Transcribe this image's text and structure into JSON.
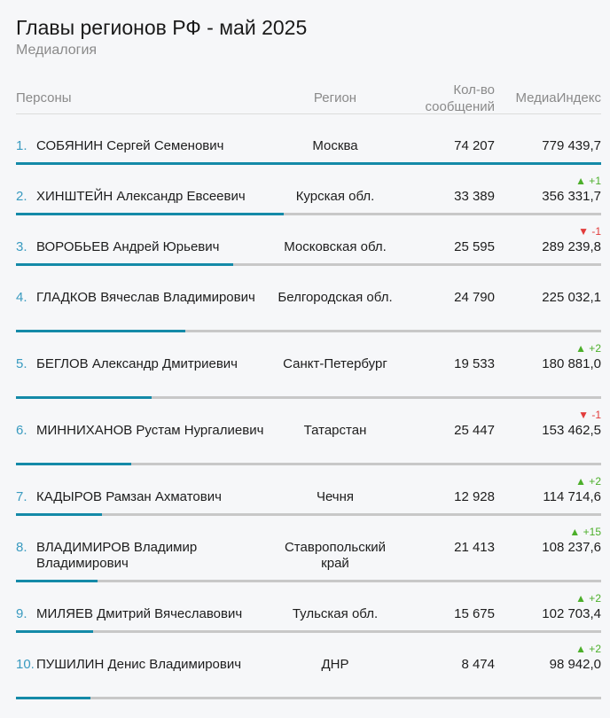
{
  "title": "Главы регионов РФ - май 2025",
  "subtitle": "Медиалогия",
  "headers": {
    "persons": "Персоны",
    "region": "Регион",
    "count_line1": "Кол-во",
    "count_line2": "сообщений",
    "index": "МедиаИндекс"
  },
  "colors": {
    "bar": "#148aa8",
    "track": "#c8c8c8",
    "up": "#4caf2a",
    "down": "#e23b3b",
    "rank": "#3a9bc0"
  },
  "rows": [
    {
      "rank": "1.",
      "name": "СОБЯНИН Сергей Семенович",
      "region": "Москва",
      "count": "74 207",
      "index": "779 439,7",
      "change": "",
      "dir": ""
    },
    {
      "rank": "2.",
      "name": "ХИНШТЕЙН Александр Евсеевич",
      "region": "Курская обл.",
      "count": "33 389",
      "index": "356 331,7",
      "change": "▲ +1",
      "dir": "up"
    },
    {
      "rank": "3.",
      "name": "ВОРОБЬЕВ Андрей Юрьевич",
      "region": "Московская обл.",
      "count": "25 595",
      "index": "289 239,8",
      "change": "▼ -1",
      "dir": "down"
    },
    {
      "rank": "4.",
      "name": "ГЛАДКОВ Вячеслав Владимирович",
      "region": "Белгородская обл.",
      "count": "24 790",
      "index": "225 032,1",
      "change": "",
      "dir": ""
    },
    {
      "rank": "5.",
      "name": "БЕГЛОВ Александр Дмитриевич",
      "region": "Санкт-Петербург",
      "count": "19 533",
      "index": "180 881,0",
      "change": "▲ +2",
      "dir": "up"
    },
    {
      "rank": "6.",
      "name": "МИННИХАНОВ Рустам Нургалиевич",
      "region": "Татарстан",
      "count": "25 447",
      "index": "153 462,5",
      "change": "▼ -1",
      "dir": "down"
    },
    {
      "rank": "7.",
      "name": "КАДЫРОВ Рамзан Ахматович",
      "region": "Чечня",
      "count": "12 928",
      "index": "114 714,6",
      "change": "▲ +2",
      "dir": "up"
    },
    {
      "rank": "8.",
      "name": "ВЛАДИМИРОВ Владимир Владимирович",
      "region": "Ставропольский край",
      "count": "21 413",
      "index": "108 237,6",
      "change": "▲ +15",
      "dir": "up"
    },
    {
      "rank": "9.",
      "name": "МИЛЯЕВ Дмитрий Вячеславович",
      "region": "Тульская обл.",
      "count": "15 675",
      "index": "102 703,4",
      "change": "▲ +2",
      "dir": "up"
    },
    {
      "rank": "10.",
      "name": "ПУШИЛИН Денис Владимирович",
      "region": "ДНР",
      "count": "8 474",
      "index": "98 942,0",
      "change": "▲ +2",
      "dir": "up"
    }
  ],
  "chart_data": {
    "type": "bar",
    "categories": [
      "СОБЯНИН Сергей Семенович",
      "ХИНШТЕЙН Александр Евсеевич",
      "ВОРОБЬЕВ Андрей Юрьевич",
      "ГЛАДКОВ Вячеслав Владимирович",
      "БЕГЛОВ Александр Дмитриевич",
      "МИННИХАНОВ Рустам Нургалиевич",
      "КАДЫРОВ Рамзан Ахматович",
      "ВЛАДИМИРОВ Владимир Владимирович",
      "МИЛЯЕВ Дмитрий Вячеславович",
      "ПУШИЛИН Денис Владимирович"
    ],
    "values": [
      779439.7,
      356331.7,
      289239.8,
      225032.1,
      180881.0,
      153462.5,
      114714.6,
      108237.6,
      102703.4,
      98942.0
    ],
    "title": "Главы регионов РФ - май 2025",
    "subtitle": "Медиалогия",
    "xlabel": "",
    "ylabel": "",
    "ylim": [
      0,
      779439.7
    ]
  }
}
